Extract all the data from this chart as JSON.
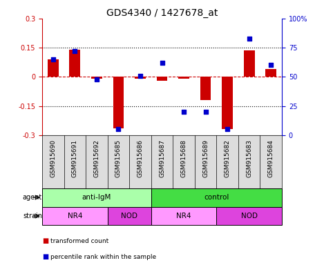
{
  "title": "GDS4340 / 1427678_at",
  "samples": [
    "GSM915690",
    "GSM915691",
    "GSM915692",
    "GSM915685",
    "GSM915686",
    "GSM915687",
    "GSM915688",
    "GSM915689",
    "GSM915682",
    "GSM915683",
    "GSM915684"
  ],
  "red_values": [
    0.09,
    0.14,
    -0.01,
    -0.265,
    -0.01,
    -0.02,
    -0.01,
    -0.12,
    -0.27,
    0.135,
    0.04
  ],
  "blue_values": [
    65,
    72,
    48,
    5,
    51,
    62,
    20,
    20,
    5,
    83,
    60
  ],
  "ylim_left": [
    -0.3,
    0.3
  ],
  "ylim_right": [
    0,
    100
  ],
  "yticks_left": [
    -0.3,
    -0.15,
    0,
    0.15,
    0.3
  ],
  "yticks_right": [
    0,
    25,
    50,
    75,
    100
  ],
  "ytick_labels_left": [
    "-0.3",
    "-0.15",
    "0",
    "0.15",
    "0.3"
  ],
  "ytick_labels_right": [
    "0",
    "25",
    "50",
    "75",
    "100%"
  ],
  "hlines": [
    0.15,
    -0.15
  ],
  "red_color": "#CC0000",
  "blue_color": "#0000CC",
  "dashed_line_color": "#CC0000",
  "agent_groups": [
    {
      "label": "anti-IgM",
      "start": 0,
      "end": 5,
      "color": "#AAFFAA"
    },
    {
      "label": "control",
      "start": 5,
      "end": 11,
      "color": "#44DD44"
    }
  ],
  "strain_groups": [
    {
      "label": "NR4",
      "start": 0,
      "end": 3,
      "color": "#FF99FF"
    },
    {
      "label": "NOD",
      "start": 3,
      "end": 5,
      "color": "#DD44DD"
    },
    {
      "label": "NR4",
      "start": 5,
      "end": 8,
      "color": "#FF99FF"
    },
    {
      "label": "NOD",
      "start": 8,
      "end": 11,
      "color": "#DD44DD"
    }
  ],
  "legend_red_label": "transformed count",
  "legend_blue_label": "percentile rank within the sample",
  "bar_width": 0.5,
  "tick_label_fontsize": 7,
  "title_fontsize": 10,
  "tick_color_left": "#CC0000",
  "tick_color_right": "#0000CC",
  "sample_bg_color": "#DDDDDD",
  "sample_fontsize": 6.5
}
